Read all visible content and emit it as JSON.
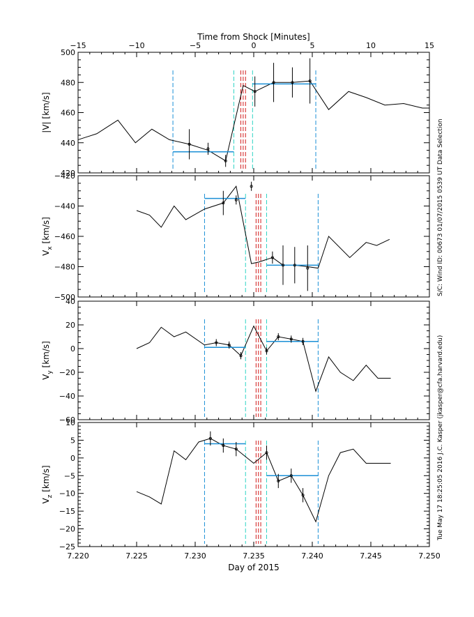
{
  "top_axis": {
    "title": "Time from Shock [Minutes]",
    "ticks": [
      -15,
      -10,
      -5,
      0,
      5,
      10,
      15
    ],
    "tick_labels": [
      "−15",
      "−10",
      "−5",
      "0",
      "5",
      "10",
      "15"
    ]
  },
  "bottom_axis": {
    "title": "Day of 2015",
    "range": [
      7.22,
      7.25
    ],
    "ticks": [
      7.22,
      7.225,
      7.23,
      7.235,
      7.24,
      7.245,
      7.25
    ],
    "tick_labels": [
      "7.220",
      "7.225",
      "7.230",
      "7.235",
      "7.240",
      "7.245",
      "7.250"
    ]
  },
  "side_labels": {
    "upper": "S/C: Wind ID: 00673 01/07/2015   0539 UT Data Selection",
    "lower": "Tue May 17 18:25:05 2016   J.C. Kasper (jkasper@cfa.harvard.edu)"
  },
  "colors": {
    "series": "#000000",
    "fit_interval": "#1a8fd6",
    "window_outer": "#1a8fd6",
    "window_inner": "#2dd4c4",
    "shock": "#d11a1a"
  },
  "chart_data": [
    {
      "type": "line",
      "ylabel": "|V| [km/s]",
      "ylim": [
        420,
        500
      ],
      "yticks": [
        420,
        440,
        460,
        480,
        500
      ],
      "ytick_labels": [
        "420",
        "440",
        "460",
        "480",
        "500"
      ],
      "x": [
        7.22,
        7.2216,
        7.2234,
        7.2249,
        7.2263,
        7.2278,
        7.2295,
        7.2311,
        7.2326,
        7.2341,
        7.2351,
        7.2367,
        7.2383,
        7.2398,
        7.2414,
        7.2431,
        7.2446,
        7.2462,
        7.2478,
        7.2494,
        7.25
      ],
      "values": [
        442,
        446,
        455,
        440,
        449,
        442,
        439,
        435,
        428,
        478,
        474,
        480,
        480,
        481,
        462,
        474,
        470,
        465,
        466,
        463,
        463
      ],
      "error_bars": [
        {
          "x": 7.2295,
          "y": 439,
          "err": 10
        },
        {
          "x": 7.2311,
          "y": 436,
          "err": 4
        },
        {
          "x": 7.2326,
          "y": 428,
          "err": 4
        },
        {
          "x": 7.2351,
          "y": 474,
          "err": 10
        },
        {
          "x": 7.2367,
          "y": 480,
          "err": 13
        },
        {
          "x": 7.2383,
          "y": 480,
          "err": 10
        },
        {
          "x": 7.2398,
          "y": 481,
          "err": 15
        }
      ],
      "fit_intervals": [
        {
          "x_start": 7.2281,
          "x_end": 7.2333,
          "y": 434
        },
        {
          "x_start": 7.2349,
          "x_end": 7.2403,
          "y": 479
        }
      ],
      "window_outer": [
        7.2281,
        7.2403
      ],
      "window_inner": [
        7.2333,
        7.2349
      ],
      "shock_lines": [
        7.2339,
        7.2341,
        7.2343
      ]
    },
    {
      "type": "line",
      "ylabel": "V_x [km/s]",
      "ylim": [
        -500,
        -420
      ],
      "yticks": [
        -500,
        -480,
        -460,
        -440,
        -420
      ],
      "ytick_labels": [
        "−500",
        "−480",
        "−460",
        "−440",
        "−420"
      ],
      "x": [
        7.225,
        7.2261,
        7.2271,
        7.2282,
        7.2292,
        7.2308,
        7.2324,
        7.2335,
        7.2348,
        7.2354,
        7.2366,
        7.2375,
        7.2385,
        7.2396,
        7.2405,
        7.2414,
        7.2432,
        7.2446,
        7.2455,
        7.2466
      ],
      "values": [
        -443,
        -446,
        -454,
        -440,
        -449,
        -442,
        -438,
        -427,
        -478,
        -477,
        -474,
        -479,
        -479,
        -480,
        -481,
        -460,
        -474,
        -464,
        -466,
        -462
      ],
      "error_bars": [
        {
          "x": 7.2324,
          "y": -438,
          "err": 8
        },
        {
          "x": 7.2335,
          "y": -436,
          "err": 3
        },
        {
          "x": 7.2348,
          "y": -427,
          "err": 3
        },
        {
          "x": 7.2366,
          "y": -474,
          "err": 4
        },
        {
          "x": 7.2375,
          "y": -479,
          "err": 13
        },
        {
          "x": 7.2385,
          "y": -479,
          "err": 12
        },
        {
          "x": 7.2396,
          "y": -481,
          "err": 15
        }
      ],
      "fit_intervals": [
        {
          "x_start": 7.2308,
          "x_end": 7.2343,
          "y": -435
        },
        {
          "x_start": 7.2361,
          "x_end": 7.2405,
          "y": -479
        }
      ],
      "window_outer": [
        7.2308,
        7.2405
      ],
      "window_inner": [
        7.2343,
        7.2361
      ],
      "shock_lines": [
        7.2352,
        7.2354,
        7.2356
      ]
    },
    {
      "type": "line",
      "ylabel": "V_y [km/s]",
      "ylim": [
        -60,
        40
      ],
      "yticks": [
        -60,
        -40,
        -20,
        0,
        20,
        40
      ],
      "ytick_labels": [
        "−60",
        "−40",
        "−20",
        "0",
        "20",
        "40"
      ],
      "x": [
        7.225,
        7.2261,
        7.2271,
        7.2282,
        7.2292,
        7.2308,
        7.2318,
        7.2329,
        7.2339,
        7.235,
        7.2361,
        7.2371,
        7.2382,
        7.2392,
        7.2403,
        7.2414,
        7.2424,
        7.2435,
        7.2446,
        7.2456,
        7.2467
      ],
      "values": [
        0,
        5,
        18,
        10,
        14,
        3,
        5,
        3,
        -6,
        19,
        -2,
        10,
        8,
        6,
        -36,
        -7,
        -20,
        -27,
        -14,
        -25,
        -25
      ],
      "error_bars": [
        {
          "x": 7.2318,
          "y": 5,
          "err": 3
        },
        {
          "x": 7.2329,
          "y": 3,
          "err": 3
        },
        {
          "x": 7.2339,
          "y": -6,
          "err": 3
        },
        {
          "x": 7.2361,
          "y": -2,
          "err": 3
        },
        {
          "x": 7.2371,
          "y": 10,
          "err": 3
        },
        {
          "x": 7.2382,
          "y": 8,
          "err": 3
        },
        {
          "x": 7.2392,
          "y": 6,
          "err": 3
        }
      ],
      "fit_intervals": [
        {
          "x_start": 7.2308,
          "x_end": 7.2343,
          "y": 1
        },
        {
          "x_start": 7.2361,
          "x_end": 7.2405,
          "y": 6
        }
      ],
      "window_outer": [
        7.2308,
        7.2405
      ],
      "window_inner": [
        7.2343,
        7.2361
      ],
      "shock_lines": [
        7.2352,
        7.2354,
        7.2356
      ]
    },
    {
      "type": "line",
      "ylabel": "V_z [km/s]",
      "ylim": [
        -25,
        10
      ],
      "yticks": [
        -25,
        -20,
        -15,
        -10,
        -5,
        0,
        5,
        10
      ],
      "ytick_labels": [
        "−25",
        "−20",
        "−15",
        "−10",
        "−5",
        "0",
        "5",
        "10"
      ],
      "x": [
        7.225,
        7.2261,
        7.2271,
        7.2282,
        7.2292,
        7.2303,
        7.2313,
        7.2324,
        7.2335,
        7.235,
        7.2361,
        7.2371,
        7.2382,
        7.2392,
        7.2403,
        7.2414,
        7.2424,
        7.2435,
        7.2446,
        7.2456,
        7.2467
      ],
      "values": [
        -9.5,
        -11,
        -13,
        2,
        -0.5,
        4.5,
        5.5,
        3.5,
        2.5,
        -1.5,
        1.5,
        -6.5,
        -5,
        -10.5,
        -18,
        -5,
        1.5,
        2.5,
        -1.5,
        -1.5,
        -1.5
      ],
      "error_bars": [
        {
          "x": 7.2313,
          "y": 5.5,
          "err": 2
        },
        {
          "x": 7.2324,
          "y": 3.5,
          "err": 2
        },
        {
          "x": 7.2335,
          "y": 2.5,
          "err": 2
        },
        {
          "x": 7.2361,
          "y": 1.5,
          "err": 2
        },
        {
          "x": 7.2371,
          "y": -6.5,
          "err": 2
        },
        {
          "x": 7.2382,
          "y": -5,
          "err": 2
        },
        {
          "x": 7.2392,
          "y": -10.5,
          "err": 2
        }
      ],
      "fit_intervals": [
        {
          "x_start": 7.2308,
          "x_end": 7.2343,
          "y": 4
        },
        {
          "x_start": 7.2361,
          "x_end": 7.2405,
          "y": -5
        }
      ],
      "window_outer": [
        7.2308,
        7.2405
      ],
      "window_inner": [
        7.2343,
        7.2361
      ],
      "shock_lines": [
        7.2352,
        7.2354,
        7.2356
      ]
    }
  ]
}
